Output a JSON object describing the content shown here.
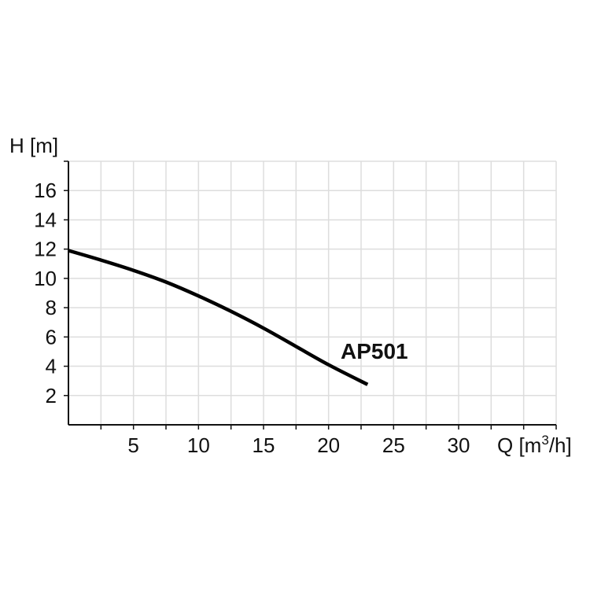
{
  "chart_data": {
    "type": "line",
    "title": "",
    "ylabel": "H [m]",
    "xlabel_main": "Q [m",
    "xlabel_sup": "3",
    "xlabel_end": "/h]",
    "xlim": [
      0,
      37.5
    ],
    "ylim": [
      0,
      18
    ],
    "x_ticks": [
      5,
      10,
      15,
      20,
      25,
      30
    ],
    "y_ticks": [
      2,
      4,
      6,
      8,
      10,
      12,
      14,
      16
    ],
    "x_grid_step": 2.5,
    "y_grid_step": 2,
    "grid": true,
    "series": [
      {
        "name": "AP501",
        "color": "#000000",
        "x": [
          0,
          2.5,
          5,
          7.5,
          10,
          12.5,
          15,
          17.5,
          20,
          23
        ],
        "y": [
          11.9,
          11.25,
          10.55,
          9.75,
          8.8,
          7.75,
          6.6,
          5.35,
          4.1,
          2.75
        ]
      }
    ]
  }
}
